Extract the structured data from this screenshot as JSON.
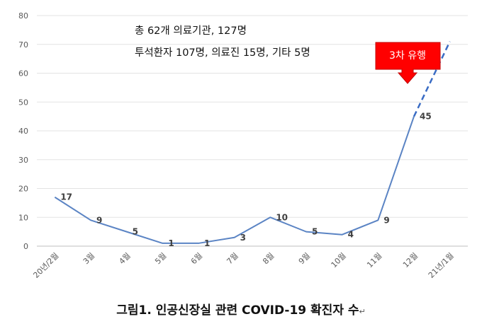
{
  "chart_data": {
    "type": "line",
    "categories": [
      "20년/2월",
      "3월",
      "4월",
      "5월",
      "6월",
      "7월",
      "8월",
      "9월",
      "10월",
      "11월",
      "12월",
      "21년/1월"
    ],
    "series": [
      {
        "values": [
          17,
          9,
          5,
          1,
          1,
          3,
          10,
          5,
          4,
          9,
          45,
          null
        ],
        "color": "#5b84c4"
      }
    ],
    "projection": {
      "from": [
        10,
        45
      ],
      "to": [
        11,
        71
      ],
      "style": "dashed",
      "color": "#3a6cc4"
    },
    "data_labels": [
      "17",
      "9",
      "5",
      "1",
      "1",
      "3",
      "10",
      "5",
      "4",
      "9",
      "45"
    ],
    "ylim": [
      0,
      80
    ],
    "yticks": [
      0,
      10,
      20,
      30,
      40,
      50,
      60,
      70,
      80
    ],
    "grid": "horizontal",
    "annotations": {
      "line1": "총 62개 의료기관, 127명",
      "line2": "투석환자 107명, 의료진 15명, 기타 5명",
      "callout": "3차 유행"
    },
    "callout_colors": {
      "fill": "#ff0000",
      "text": "#ffffff"
    }
  },
  "caption": {
    "text": "그림1. 인공신장실 관련 COVID-19 확진자 수",
    "mark": "↵"
  }
}
